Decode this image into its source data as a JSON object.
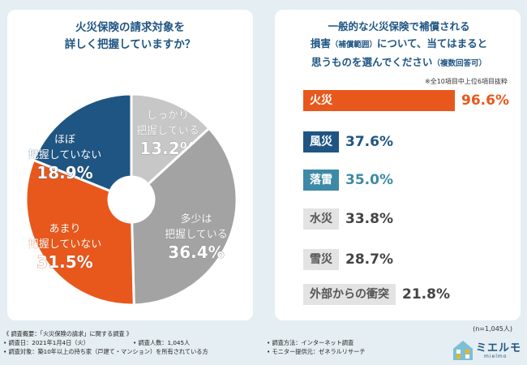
{
  "colors": {
    "navy": "#1f5583",
    "orange": "#e8581c",
    "gray_light": "#c7c7c7",
    "gray_mid": "#a3a3a3",
    "bar_blue": "#1f5583",
    "bar_teal": "#3e89a6",
    "bar_gray": "#e3e3e3"
  },
  "left": {
    "question_line1": "火災保険の請求対象を",
    "question_line2": "詳しく把握していますか？"
  },
  "right": {
    "question_line1": "一般的な火災保険で補償される",
    "question_line2a": "損害",
    "question_line2b": "（補償範囲）",
    "question_line2c": "について、当てはまると",
    "question_line3a": "思うものを選んでください",
    "question_line3b": "（複数回答可）",
    "note": "※全10項目中上位6項目抜粋",
    "n": "(n=1,045人)"
  },
  "chart_data": [
    {
      "type": "pie",
      "title": "火災保険の請求対象を詳しく把握していますか？",
      "slices": [
        {
          "label_line1": "しっかり",
          "label_line2": "把握している",
          "value": 13.2,
          "value_text": "13.2%"
        },
        {
          "label_line1": "多少は",
          "label_line2": "把握している",
          "value": 36.4,
          "value_text": "36.4%"
        },
        {
          "label_line1": "あまり",
          "label_line2": "把握していない",
          "value": 31.5,
          "value_text": "31.5%"
        },
        {
          "label_line1": "ほぼ",
          "label_line2": "把握していない",
          "value": 18.9,
          "value_text": "18.9%"
        }
      ]
    },
    {
      "type": "bar",
      "title": "一般的な火災保険で補償される損害（補償範囲）について、当てはまると思うものを選んでください（複数回答可）",
      "xlim": [
        0,
        100
      ],
      "series": [
        {
          "label": "火災",
          "value": 96.6,
          "value_text": "96.6%"
        },
        {
          "label": "風災",
          "value": 37.6,
          "value_text": "37.6%"
        },
        {
          "label": "落雷",
          "value": 35.0,
          "value_text": "35.0%"
        },
        {
          "label": "水災",
          "value": 33.8,
          "value_text": "33.8%"
        },
        {
          "label": "雪災",
          "value": 28.7,
          "value_text": "28.7%"
        },
        {
          "label": "外部からの衝突",
          "value": 21.8,
          "value_text": "21.8%"
        }
      ]
    }
  ],
  "footer": {
    "heading": "《 調査概要：「火災保険の請求」に関する調査 》",
    "date": "• 調査日：2021年1月4日（火）",
    "count": "• 調査人数：1,045人",
    "method": "• 調査方法：インターネット調査",
    "target": "• 調査対象：築10年以上の持ち家（戸建て・マンション）を所有されている方",
    "provider": "• モニター提供元：ゼネラルリサーチ"
  },
  "brand": {
    "name": "ミエルモ",
    "sub": "mielmo",
    "icon": "house-icon"
  }
}
